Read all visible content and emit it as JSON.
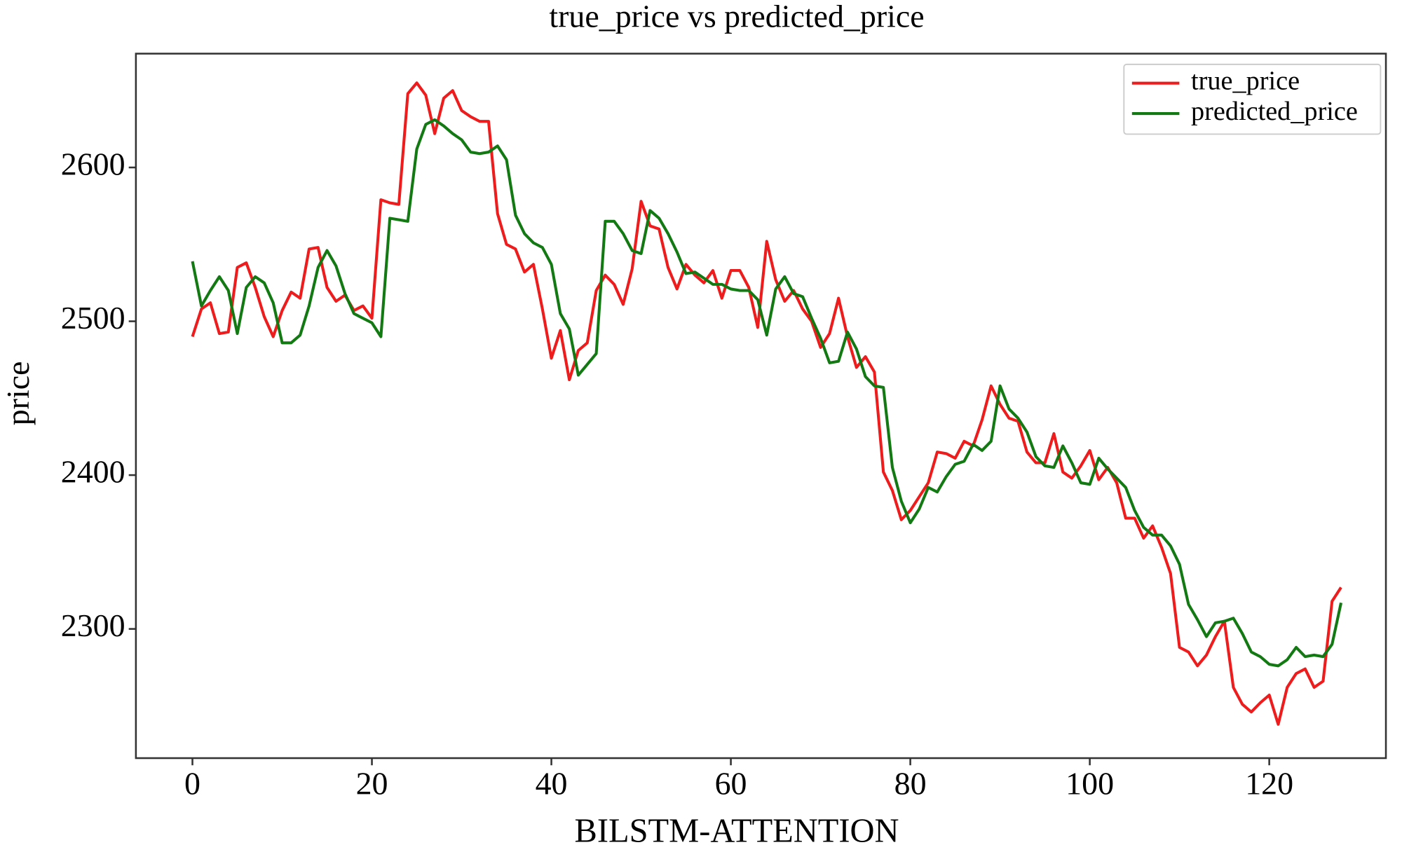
{
  "chart_data": {
    "type": "line",
    "title": "true_price vs predicted_price",
    "xlabel": "BILSTM-ATTENTION",
    "ylabel": "price",
    "x": [
      0,
      1,
      2,
      3,
      4,
      5,
      6,
      7,
      8,
      9,
      10,
      11,
      12,
      13,
      14,
      15,
      16,
      17,
      18,
      19,
      20,
      21,
      22,
      23,
      24,
      25,
      26,
      27,
      28,
      29,
      30,
      31,
      32,
      33,
      34,
      35,
      36,
      37,
      38,
      39,
      40,
      41,
      42,
      43,
      44,
      45,
      46,
      47,
      48,
      49,
      50,
      51,
      52,
      53,
      54,
      55,
      56,
      57,
      58,
      59,
      60,
      61,
      62,
      63,
      64,
      65,
      66,
      67,
      68,
      69,
      70,
      71,
      72,
      73,
      74,
      75,
      76,
      77,
      78,
      79,
      80,
      81,
      82,
      83,
      84,
      85,
      86,
      87,
      88,
      89,
      90,
      91,
      92,
      93,
      94,
      95,
      96,
      97,
      98,
      99,
      100,
      101,
      102,
      103,
      104,
      105,
      106,
      107,
      108,
      109,
      110,
      111,
      112,
      113,
      114,
      115,
      116,
      117,
      118,
      119,
      120,
      121,
      122,
      123,
      124,
      125,
      126,
      127,
      128
    ],
    "series": [
      {
        "name": "true_price",
        "color": "#ee1c1c",
        "values": [
          2490,
          2508,
          2512,
          2492,
          2493,
          2535,
          2538,
          2522,
          2503,
          2490,
          2507,
          2519,
          2515,
          2547,
          2548,
          2522,
          2513,
          2517,
          2507,
          2510,
          2502,
          2579,
          2577,
          2576,
          2648,
          2655,
          2647,
          2622,
          2645,
          2650,
          2637,
          2633,
          2630,
          2630,
          2570,
          2550,
          2547,
          2532,
          2537,
          2508,
          2476,
          2494,
          2462,
          2481,
          2486,
          2520,
          2530,
          2524,
          2511,
          2534,
          2578,
          2562,
          2560,
          2535,
          2521,
          2537,
          2530,
          2525,
          2533,
          2515,
          2533,
          2533,
          2522,
          2496,
          2552,
          2527,
          2513,
          2520,
          2508,
          2500,
          2483,
          2492,
          2515,
          2490,
          2470,
          2477,
          2467,
          2402,
          2390,
          2371,
          2377,
          2386,
          2395,
          2415,
          2414,
          2411,
          2422,
          2419,
          2436,
          2458,
          2446,
          2437,
          2435,
          2415,
          2408,
          2408,
          2427,
          2402,
          2398,
          2406,
          2416,
          2397,
          2405,
          2395,
          2372,
          2372,
          2359,
          2367,
          2353,
          2336,
          2288,
          2285,
          2276,
          2283,
          2295,
          2305,
          2262,
          2251,
          2246,
          2252,
          2257,
          2238,
          2262,
          2271,
          2274,
          2262,
          2266,
          2318,
          2327
        ]
      },
      {
        "name": "predicted_price",
        "color": "#137a13",
        "values": [
          2539,
          2510,
          2520,
          2529,
          2520,
          2492,
          2522,
          2529,
          2525,
          2512,
          2486,
          2486,
          2491,
          2510,
          2535,
          2546,
          2536,
          2518,
          2505,
          2502,
          2499,
          2490,
          2567,
          2566,
          2565,
          2612,
          2628,
          2631,
          2627,
          2622,
          2618,
          2610,
          2609,
          2610,
          2614,
          2605,
          2569,
          2557,
          2551,
          2548,
          2537,
          2505,
          2495,
          2465,
          2472,
          2479,
          2565,
          2565,
          2557,
          2546,
          2544,
          2572,
          2567,
          2557,
          2545,
          2531,
          2532,
          2528,
          2524,
          2524,
          2521,
          2520,
          2520,
          2514,
          2491,
          2521,
          2529,
          2518,
          2516,
          2502,
          2489,
          2473,
          2474,
          2493,
          2482,
          2464,
          2458,
          2457,
          2405,
          2383,
          2369,
          2378,
          2392,
          2389,
          2399,
          2407,
          2409,
          2420,
          2416,
          2422,
          2458,
          2443,
          2437,
          2428,
          2412,
          2406,
          2405,
          2419,
          2408,
          2395,
          2394,
          2411,
          2404,
          2398,
          2392,
          2377,
          2366,
          2361,
          2361,
          2354,
          2342,
          2316,
          2306,
          2295,
          2304,
          2305,
          2307,
          2297,
          2285,
          2282,
          2277,
          2276,
          2280,
          2288,
          2282,
          2283,
          2282,
          2290,
          2317
        ]
      }
    ],
    "xlim": [
      -6.3,
      133
    ],
    "ylim": [
      2216,
      2674
    ],
    "xticks": [
      0,
      20,
      40,
      60,
      80,
      100,
      120
    ],
    "yticks": [
      2300,
      2400,
      2500,
      2600
    ],
    "grid": false,
    "legend": "upper right"
  }
}
